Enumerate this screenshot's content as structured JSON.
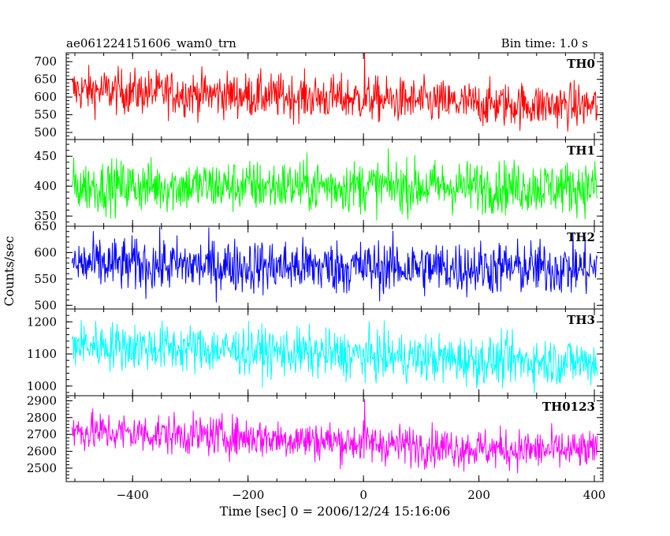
{
  "header": {
    "left_title": "ae061224151606_wam0_trn",
    "right_title": "Bin time: 1.0 s"
  },
  "chart_data": {
    "type": "line",
    "xlabel": "Time [sec] 0 = 2006/12/24 15:16:06",
    "ylabel": "Counts/sec",
    "xlim": [
      -515,
      415
    ],
    "x_ticks": [
      -400,
      -200,
      0,
      200,
      400
    ],
    "x_range_data": [
      -505,
      405
    ],
    "bin_time_s": 1.0,
    "grid": false,
    "panels": [
      {
        "name": "TH0",
        "color": "#ff0000",
        "ylim": [
          480,
          725
        ],
        "y_ticks": [
          500,
          550,
          600,
          650,
          700
        ],
        "trend": [
          [
            -505,
            620
          ],
          [
            -200,
            605
          ],
          [
            0,
            595
          ],
          [
            200,
            580
          ],
          [
            405,
            575
          ]
        ],
        "noise": 32,
        "spikes": [
          [
            2,
            725
          ]
        ]
      },
      {
        "name": "TH1",
        "color": "#00ff00",
        "ylim": [
          333,
          478
        ],
        "y_ticks": [
          350,
          400,
          450
        ],
        "trend": [
          [
            -505,
            400
          ],
          [
            0,
            400
          ],
          [
            405,
            398
          ]
        ],
        "noise": 22,
        "spikes": []
      },
      {
        "name": "TH2",
        "color": "#0000ff",
        "ylim": [
          493,
          650
        ],
        "y_ticks": [
          500,
          550,
          600,
          650
        ],
        "trend": [
          [
            -505,
            578
          ],
          [
            0,
            572
          ],
          [
            405,
            570
          ]
        ],
        "noise": 26,
        "spikes": []
      },
      {
        "name": "TH3",
        "color": "#00ffff",
        "ylim": [
          970,
          1240
        ],
        "y_ticks": [
          1000,
          1100,
          1200
        ],
        "trend": [
          [
            -505,
            1130
          ],
          [
            -200,
            1110
          ],
          [
            0,
            1095
          ],
          [
            200,
            1080
          ],
          [
            405,
            1075
          ]
        ],
        "noise": 38,
        "spikes": []
      },
      {
        "name": "TH0123",
        "color": "#ff00ff",
        "ylim": [
          2420,
          2930
        ],
        "y_ticks": [
          2500,
          2600,
          2700,
          2800,
          2900
        ],
        "trend": [
          [
            -505,
            2720
          ],
          [
            -200,
            2685
          ],
          [
            0,
            2650
          ],
          [
            200,
            2615
          ],
          [
            405,
            2600
          ]
        ],
        "noise": 60,
        "spikes": [
          [
            2,
            2910
          ]
        ]
      }
    ]
  }
}
